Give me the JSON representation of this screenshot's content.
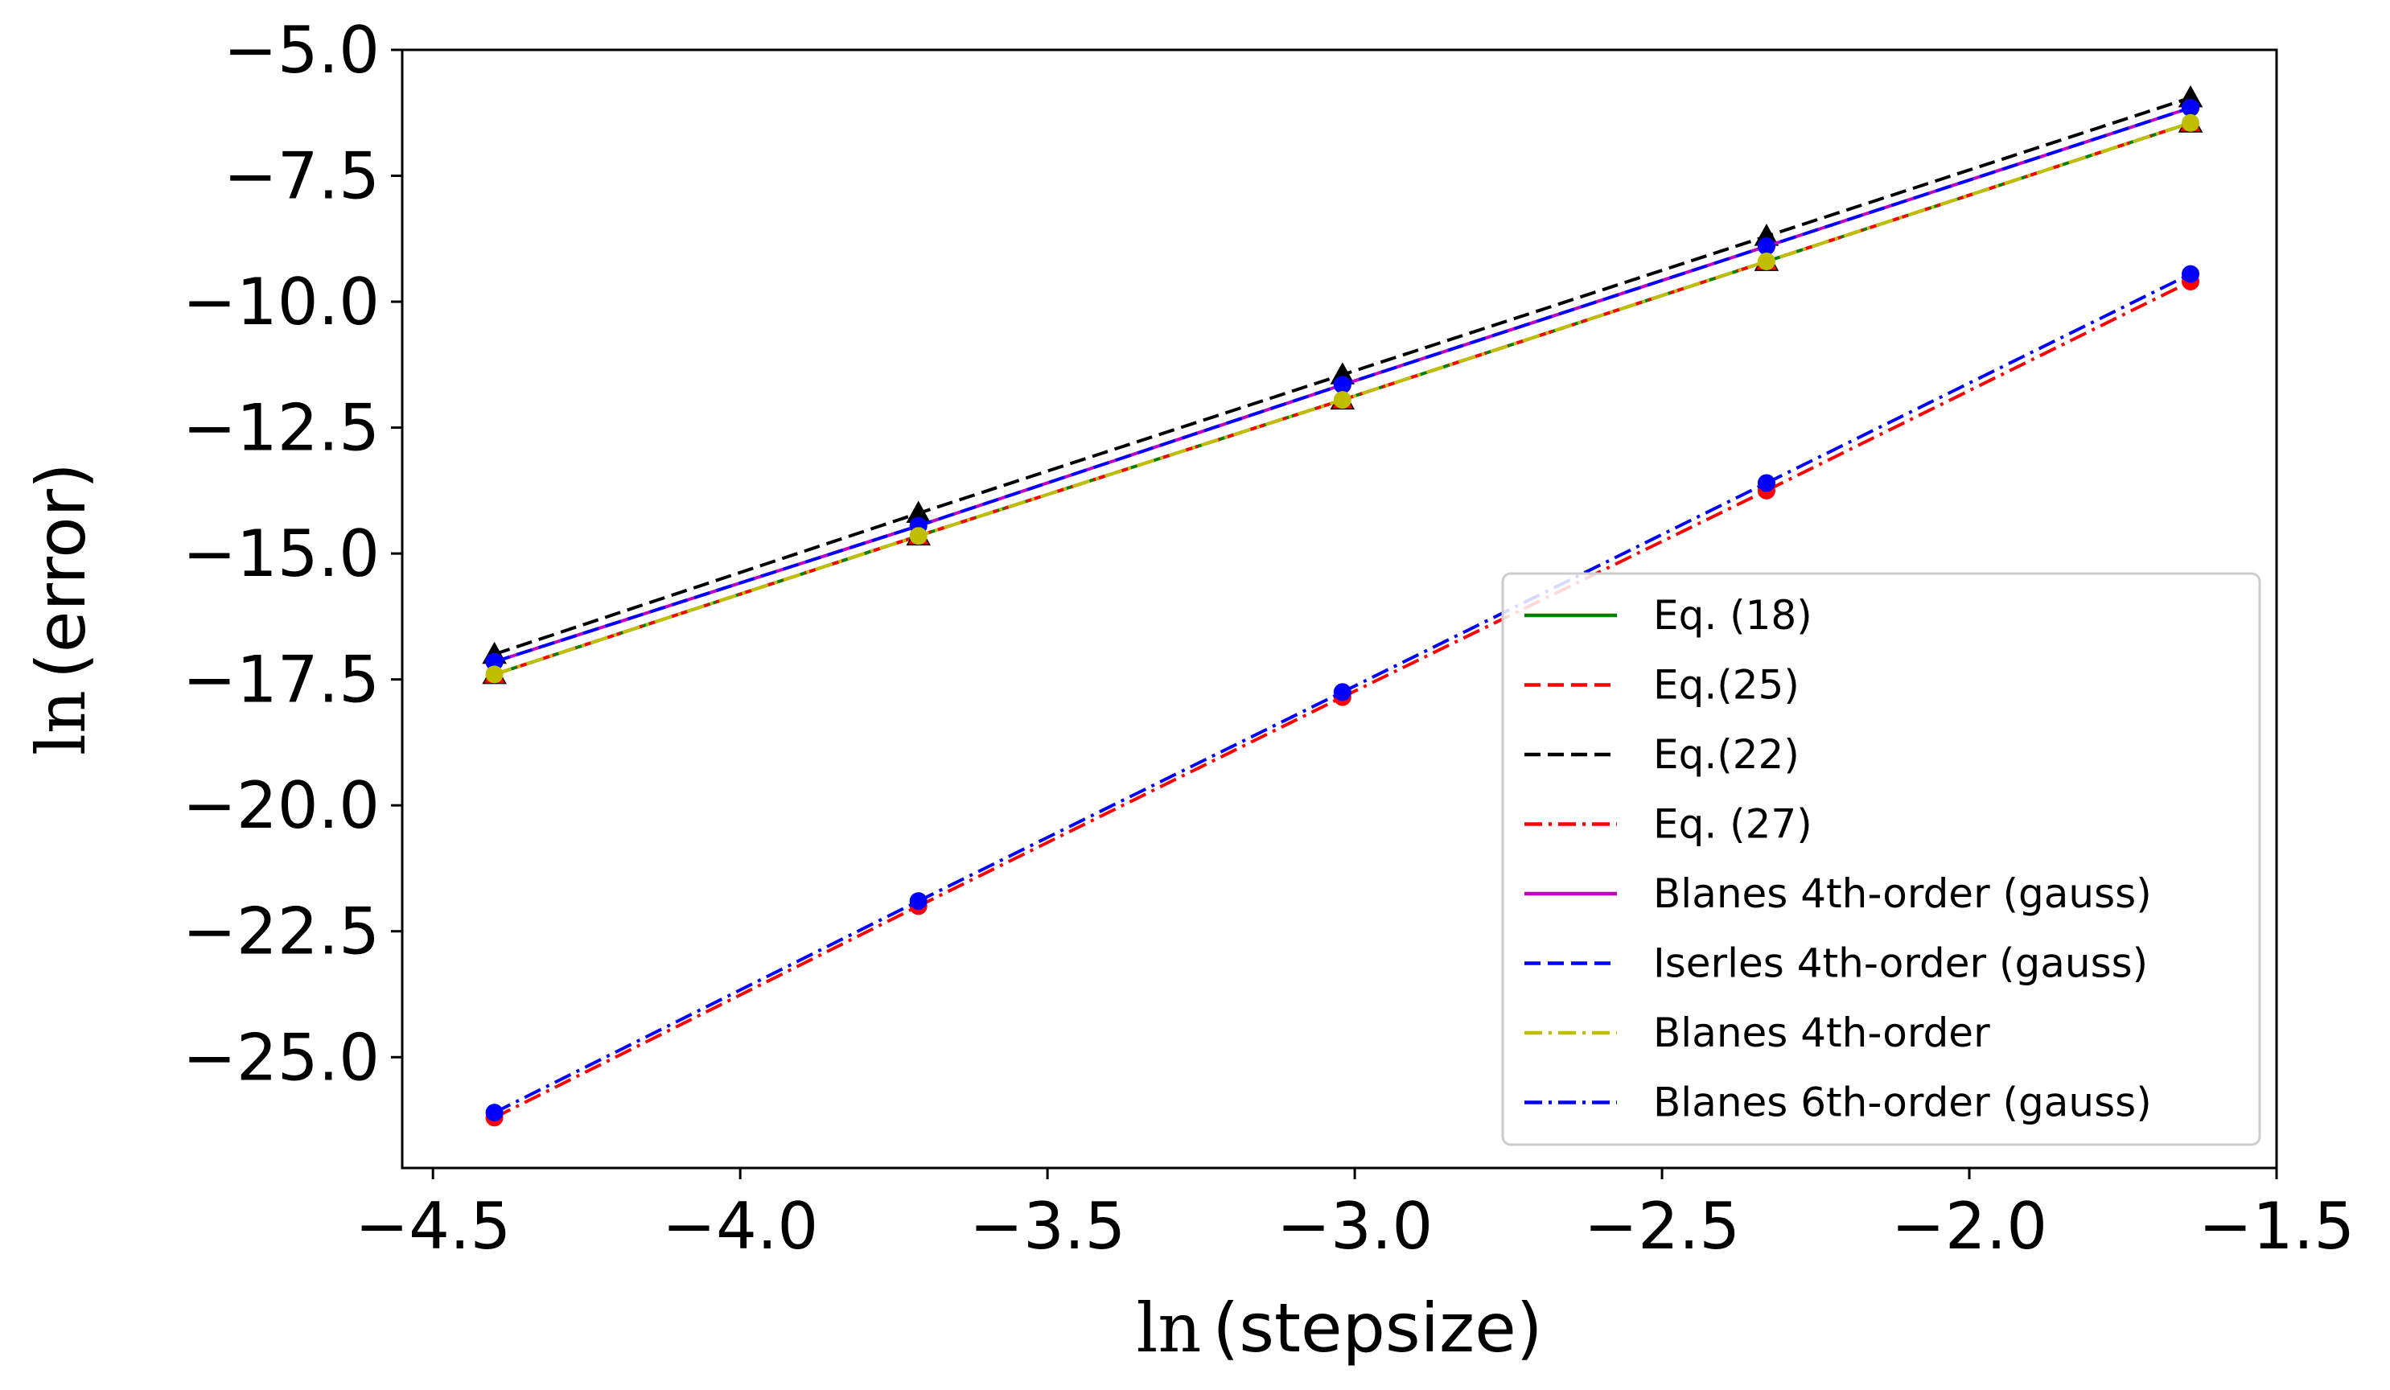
{
  "chart_data": {
    "type": "line",
    "title": "",
    "xlabel": "ln (stepsize)",
    "ylabel": "ln (error)",
    "xlabel_parts": {
      "ln": "ln",
      "rest": "(stepsize)"
    },
    "ylabel_parts": {
      "ln": "ln",
      "rest": "(error)"
    },
    "xlim": [
      -4.55,
      -1.5
    ],
    "ylim": [
      -27.2,
      -5.0
    ],
    "xticks": [
      -4.5,
      -4.0,
      -3.5,
      -3.0,
      -2.5,
      -2.0,
      -1.5
    ],
    "xtick_labels": [
      "−4.5",
      "−4.0",
      "−3.5",
      "−3.0",
      "−2.5",
      "−2.0",
      "−1.5"
    ],
    "yticks": [
      -5.0,
      -7.5,
      -10.0,
      -12.5,
      -15.0,
      -17.5,
      -20.0,
      -22.5,
      -25.0
    ],
    "ytick_labels": [
      "−5.0",
      "−7.5",
      "−10.0",
      "−12.5",
      "−15.0",
      "−17.5",
      "−20.0",
      "−22.5",
      "−25.0"
    ],
    "grid": false,
    "legend_position": "lower-right",
    "x": [
      -4.4,
      -3.71,
      -3.02,
      -2.33,
      -1.64
    ],
    "series": [
      {
        "name": "Eq. (18)",
        "color": "#008000",
        "dash": "solid",
        "marker": "none",
        "values": [
          -17.4,
          -14.65,
          -11.95,
          -9.2,
          -6.45
        ]
      },
      {
        "name": "Eq.(25)",
        "color": "#ff0000",
        "dash": "dashed",
        "marker": "triangle",
        "values": [
          -17.4,
          -14.65,
          -11.95,
          -9.2,
          -6.45
        ]
      },
      {
        "name": "Eq.(22)",
        "color": "#000000",
        "dash": "dashed",
        "marker": "triangle",
        "values": [
          -17.0,
          -14.2,
          -11.45,
          -8.7,
          -5.95
        ]
      },
      {
        "name": "Eq. (27)",
        "color": "#ff0000",
        "dash": "dashdot",
        "marker": "circle",
        "values": [
          -26.2,
          -22.0,
          -17.85,
          -13.75,
          -9.6
        ]
      },
      {
        "name": "Blanes 4th-order (gauss)",
        "color": "#bf00bf",
        "dash": "solid",
        "marker": "circle",
        "values": [
          -17.15,
          -14.45,
          -11.65,
          -8.9,
          -6.15
        ]
      },
      {
        "name": "Iserles 4th-order (gauss)",
        "color": "#0000ff",
        "dash": "dashed",
        "marker": "circle",
        "values": [
          -17.15,
          -14.45,
          -11.65,
          -8.9,
          -6.15
        ]
      },
      {
        "name": "Blanes 4th-order",
        "color": "#bfbf00",
        "dash": "dashdot",
        "marker": "circle",
        "values": [
          -17.4,
          -14.65,
          -11.95,
          -9.2,
          -6.45
        ]
      },
      {
        "name": "Blanes 6th-order (gauss)",
        "color": "#0000ff",
        "dash": "dashdot",
        "marker": "circle",
        "values": [
          -26.1,
          -21.9,
          -17.75,
          -13.6,
          -9.45
        ]
      }
    ]
  }
}
